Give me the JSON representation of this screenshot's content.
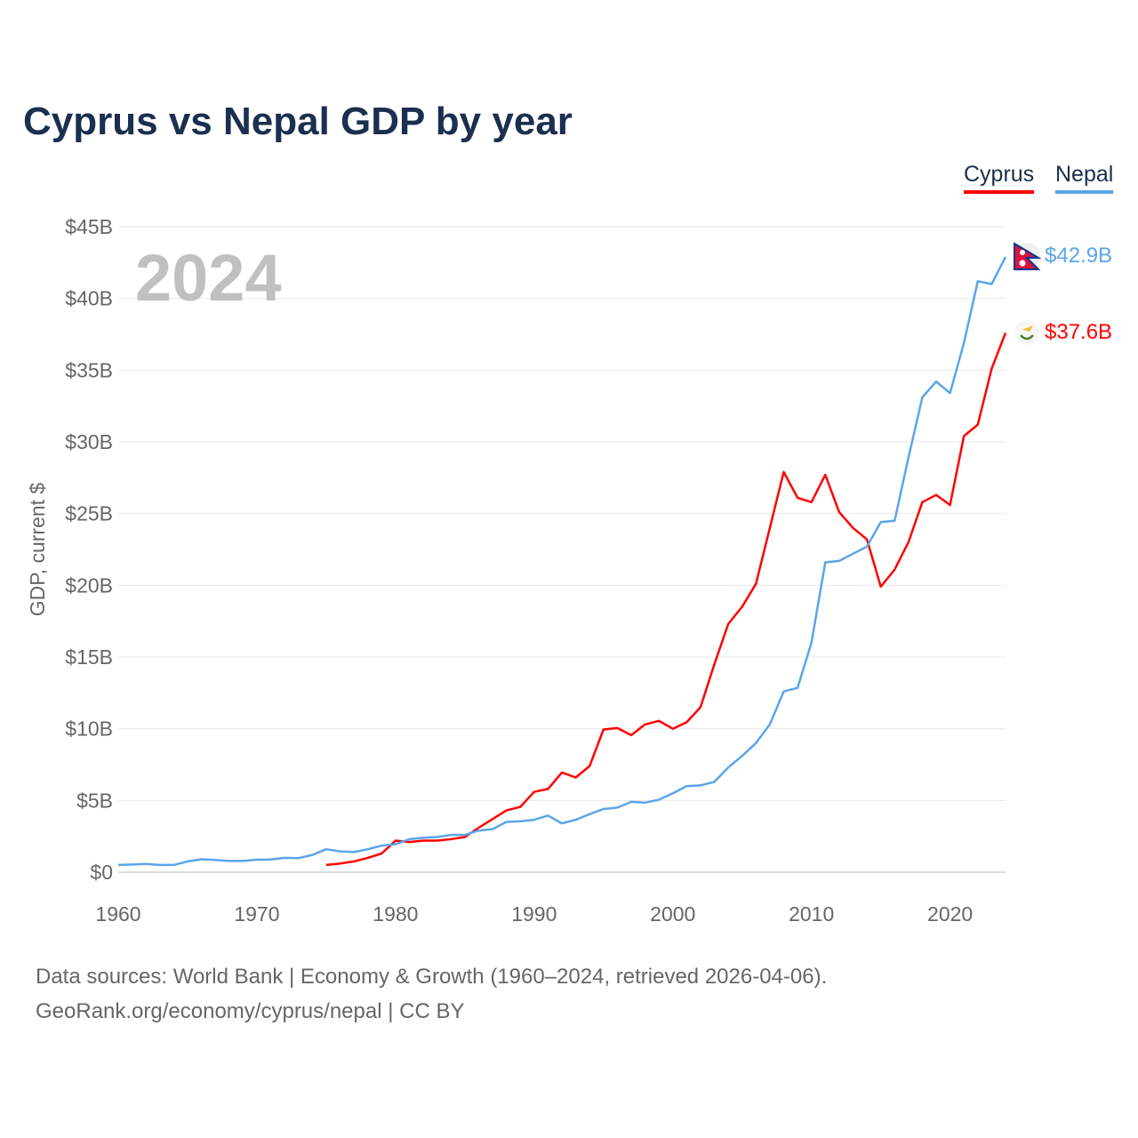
{
  "title": "Cyprus vs Nepal GDP by year",
  "legend": [
    {
      "label": "Cyprus",
      "color": "#ff0000"
    },
    {
      "label": "Nepal",
      "color": "#5aa5ea"
    }
  ],
  "year_label": "2024",
  "footer": {
    "line1": "Data sources: World Bank | Economy & Growth (1960–2024, retrieved 2026-04-06).",
    "line2": "GeoRank.org/economy/cyprus/nepal | CC BY"
  },
  "chart_data": {
    "type": "line",
    "title": "Cyprus vs Nepal GDP by year",
    "xlabel": "",
    "ylabel": "GDP, current $",
    "xlim": [
      1960,
      2024
    ],
    "ylim": [
      0,
      45
    ],
    "grid": true,
    "legend_position": "top-right",
    "x_ticks": [
      1960,
      1970,
      1980,
      1990,
      2000,
      2010,
      2020
    ],
    "x_tick_labels": [
      "1960",
      "1970",
      "1980",
      "1990",
      "2000",
      "2010",
      "2020"
    ],
    "y_ticks": [
      0,
      5,
      10,
      15,
      20,
      25,
      30,
      35,
      40,
      45
    ],
    "y_tick_labels": [
      "$0",
      "$5B",
      "$10B",
      "$15B",
      "$20B",
      "$25B",
      "$30B",
      "$35B",
      "$40B",
      "$45B"
    ],
    "series": [
      {
        "name": "Cyprus",
        "color": "#ff0000",
        "end_label": "$37.6B",
        "start_year": 1975,
        "values": [
          0.5,
          0.6,
          0.75,
          1.0,
          1.3,
          2.2,
          2.1,
          2.2,
          2.2,
          2.3,
          2.45,
          3.1,
          3.7,
          4.3,
          4.55,
          5.6,
          5.8,
          6.95,
          6.6,
          7.4,
          9.95,
          10.05,
          9.55,
          10.3,
          10.55,
          10.0,
          10.45,
          11.5,
          14.5,
          17.3,
          18.5,
          20.1,
          24.0,
          27.9,
          26.1,
          25.8,
          27.7,
          25.1,
          24.0,
          23.2,
          19.9,
          21.1,
          23.0,
          25.8,
          26.3,
          25.6,
          30.4,
          31.2,
          35.1,
          37.6
        ]
      },
      {
        "name": "Nepal",
        "color": "#5aa5ea",
        "end_label": "$42.9B",
        "start_year": 1960,
        "values": [
          0.5,
          0.53,
          0.57,
          0.5,
          0.5,
          0.75,
          0.9,
          0.85,
          0.78,
          0.78,
          0.87,
          0.88,
          1.0,
          0.98,
          1.2,
          1.6,
          1.45,
          1.4,
          1.6,
          1.85,
          1.95,
          2.3,
          2.4,
          2.45,
          2.6,
          2.6,
          2.9,
          3.0,
          3.5,
          3.55,
          3.65,
          3.95,
          3.4,
          3.65,
          4.05,
          4.4,
          4.5,
          4.9,
          4.85,
          5.05,
          5.5,
          6.0,
          6.05,
          6.3,
          7.3,
          8.1,
          9.0,
          10.3,
          12.6,
          12.85,
          16.0,
          21.6,
          21.7,
          22.2,
          22.7,
          24.4,
          24.5,
          28.9,
          33.1,
          34.2,
          33.4,
          36.9,
          41.2,
          41.0,
          42.9
        ]
      }
    ]
  }
}
